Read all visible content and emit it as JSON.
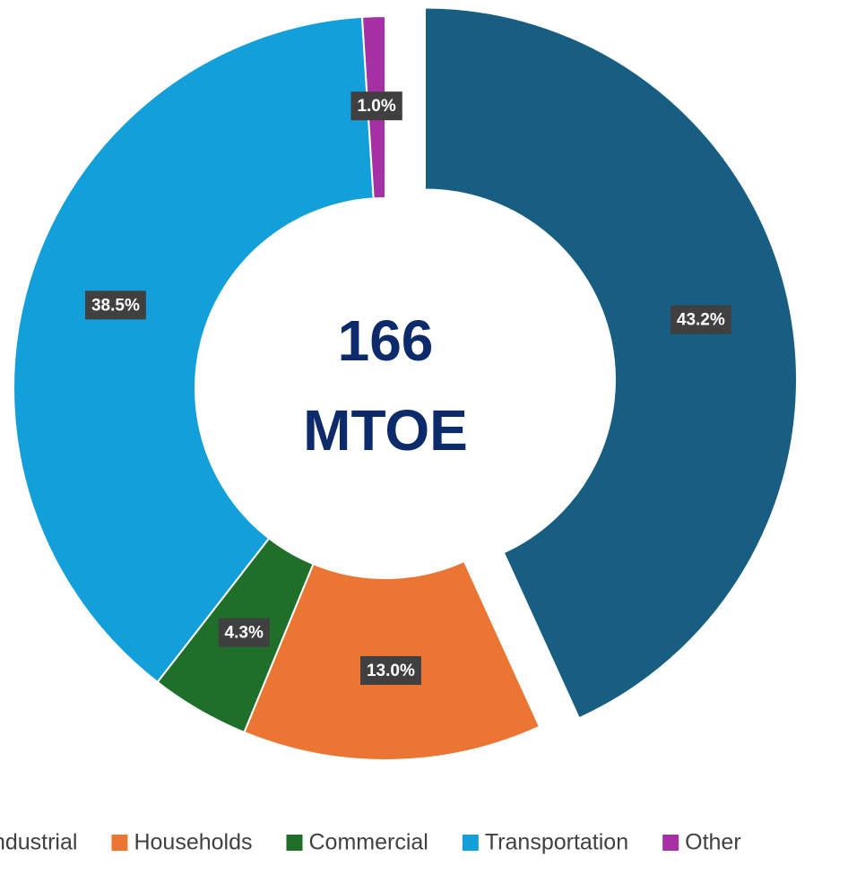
{
  "chart_data": {
    "type": "donut",
    "categories": [
      "Industrial",
      "Households",
      "Commercial",
      "Transportation",
      "Other"
    ],
    "values": [
      43.2,
      13.0,
      4.3,
      38.5,
      1.0
    ],
    "value_labels": [
      "43.2%",
      "13.0%",
      "4.3%",
      "38.5%",
      "1.0%"
    ],
    "colors": [
      "#175e82",
      "#eb7533",
      "#1f6e2a",
      "#139fd9",
      "#a531a5"
    ],
    "exploded": [
      true,
      false,
      false,
      false,
      false
    ],
    "center_text": [
      "166",
      "MTOE"
    ],
    "legend": "bottom"
  }
}
